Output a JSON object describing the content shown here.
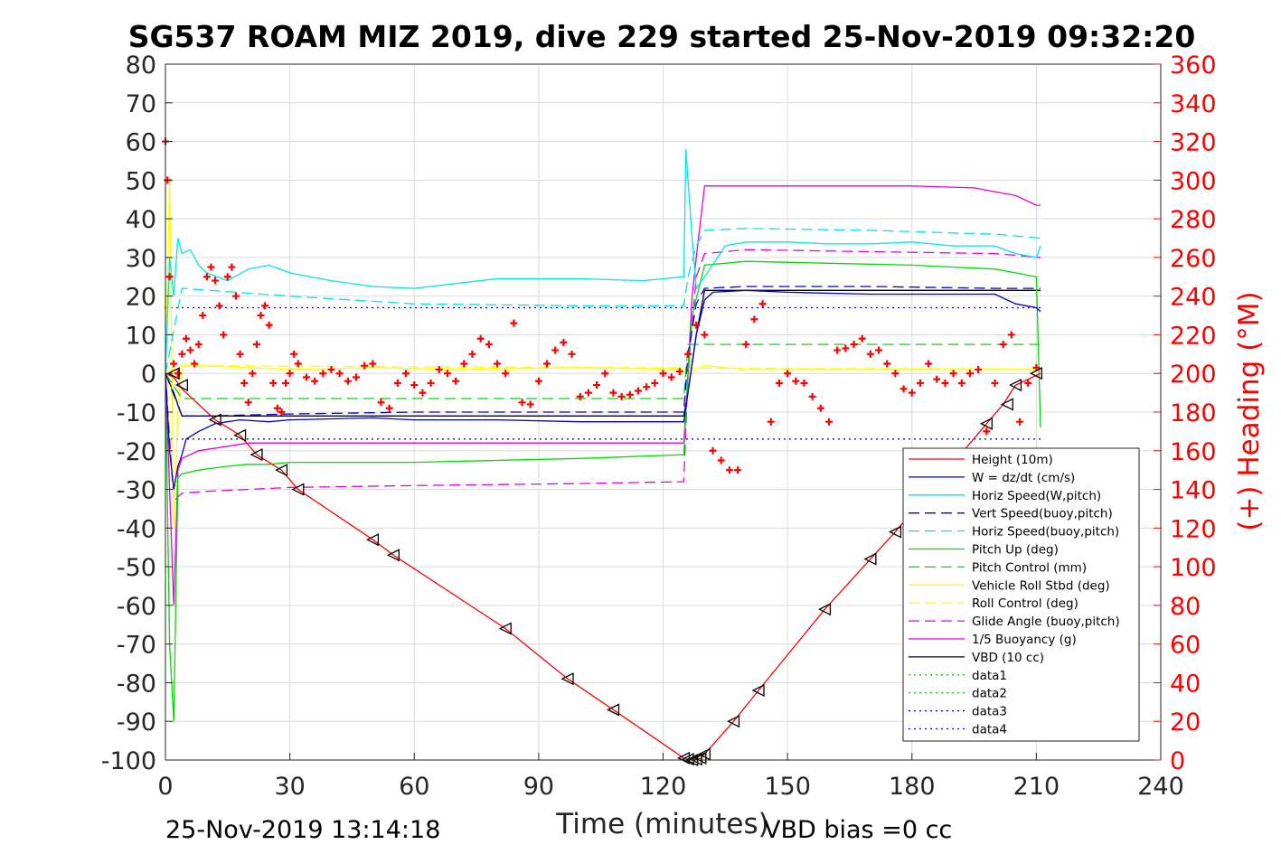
{
  "chart_data": {
    "type": "line",
    "title": "SG537 ROAM MIZ 2019, dive 229 started 25-Nov-2019 09:32:20",
    "xlabel": "Time (minutes)",
    "ylabel": "",
    "ylabel_right": "(+) Heading (°M)",
    "xlim": [
      0,
      240
    ],
    "ylim": [
      -100,
      80
    ],
    "ylim_right": [
      0,
      360
    ],
    "x_ticks": [
      "0",
      "30",
      "60",
      "90",
      "120",
      "150",
      "180",
      "210",
      "240"
    ],
    "y_ticks": [
      "80",
      "70",
      "60",
      "50",
      "40",
      "30",
      "20",
      "10",
      "0",
      "-10",
      "-20",
      "-30",
      "-40",
      "-50",
      "-60",
      "-70",
      "-80",
      "-90",
      "-100"
    ],
    "y_right_ticks": [
      "360",
      "340",
      "320",
      "300",
      "280",
      "260",
      "240",
      "220",
      "200",
      "180",
      "160",
      "140",
      "120",
      "100",
      "80",
      "60",
      "40",
      "20",
      "0"
    ],
    "grid": true,
    "legend_position": "bottom-right",
    "footer_left": "25-Nov-2019 13:14:18",
    "footer_right": "VBD bias =0 cc",
    "colors": {
      "height": "#ff0000",
      "w": "#0000cc",
      "horiz_speed": "#00e5e5",
      "vert_speed_buoy": "#0000cc",
      "horiz_speed_buoy": "#00e5e5",
      "pitch_up": "#00dd00",
      "pitch_control": "#00dd00",
      "roll": "#ffff00",
      "roll_control": "#ffff00",
      "glide_angle": "#e600e6",
      "buoyancy": "#e600e6",
      "vbd": "#000000",
      "data1": "#00dd00",
      "data2": "#00dd00",
      "data3": "#000080",
      "data4": "#0000cc",
      "heading": "#ff0000"
    },
    "series": [
      {
        "name": "Height (10m)",
        "style": "solid",
        "color_key": "height",
        "x": [
          0,
          2,
          4,
          12,
          18,
          22,
          28,
          32,
          50,
          55,
          82,
          97,
          108,
          125,
          126,
          127,
          128,
          129,
          130,
          137,
          143,
          159,
          170,
          176,
          198,
          202,
          205,
          211
        ],
        "y": [
          0,
          -1,
          -4,
          -12,
          -16,
          -21,
          -25,
          -30,
          -43,
          -47,
          -66,
          -79,
          -87,
          -99.5,
          -99.8,
          -100,
          -99.8,
          -99.6,
          -98.5,
          -90,
          -82,
          -61,
          -48,
          -41,
          -13,
          -8,
          -3,
          0
        ]
      },
      {
        "name": "W = dz/dt (cm/s)",
        "style": "solid",
        "color_key": "w",
        "x": [
          0,
          1,
          2,
          3,
          4,
          5,
          8,
          12,
          18,
          25,
          30,
          50,
          60,
          80,
          100,
          115,
          125,
          126,
          128,
          130,
          132,
          140,
          150,
          170,
          180,
          200,
          205,
          210,
          211
        ],
        "y": [
          0,
          -20,
          -30,
          -24,
          -21,
          -17,
          -15,
          -13,
          -12,
          -12.5,
          -12,
          -11.5,
          -12,
          -12,
          -12.5,
          -12.5,
          -12.5,
          -5,
          10,
          19,
          21,
          21.5,
          21,
          20.5,
          20.5,
          20.5,
          18,
          17,
          16
        ]
      },
      {
        "name": "Horiz Speed(W,pitch)",
        "style": "solid",
        "color_key": "horiz_speed",
        "x": [
          0,
          1,
          2,
          3,
          4,
          6,
          8,
          10,
          15,
          20,
          25,
          30,
          40,
          50,
          60,
          80,
          100,
          115,
          125,
          125.5,
          126,
          127,
          128,
          130,
          135,
          140,
          150,
          160,
          170,
          180,
          190,
          200,
          205,
          210,
          211
        ],
        "y": [
          0,
          30,
          20,
          35,
          31,
          32,
          28,
          26,
          24,
          27,
          28,
          26,
          24,
          22.5,
          22,
          24.5,
          24.5,
          24,
          25,
          58,
          50,
          35,
          22,
          25,
          33,
          34,
          34,
          33.5,
          33.5,
          34,
          33,
          33,
          31,
          30,
          33
        ]
      },
      {
        "name": "Vert Speed(buoy,pitch)",
        "style": "dashed",
        "color_key": "vert_speed_buoy",
        "x": [
          0,
          4,
          10,
          30,
          60,
          100,
          125,
          126,
          128,
          130,
          140,
          170,
          200,
          211
        ],
        "y": [
          0,
          -11,
          -11,
          -10.5,
          -10,
          -10,
          -10,
          5,
          18,
          22,
          22.5,
          22.5,
          22,
          22
        ]
      },
      {
        "name": "Horiz Speed(buoy,pitch)",
        "style": "dashed",
        "color_key": "horiz_speed_buoy",
        "x": [
          0,
          4,
          30,
          60,
          100,
          125,
          126,
          128,
          130,
          140,
          170,
          200,
          211
        ],
        "y": [
          0,
          22,
          20,
          18,
          17.5,
          17.5,
          25,
          33,
          37,
          37.5,
          37,
          36,
          35
        ]
      },
      {
        "name": "Pitch Up (deg)",
        "style": "solid",
        "color_key": "pitch_up",
        "x": [
          0,
          1,
          2,
          3,
          4,
          8,
          15,
          20,
          25,
          30,
          60,
          100,
          125,
          125.5,
          127,
          130,
          140,
          160,
          180,
          200,
          205,
          210,
          211
        ],
        "y": [
          0,
          -70,
          -90,
          -27,
          -26,
          -25,
          -24,
          -23.5,
          -23.5,
          -23,
          -23,
          -22,
          -21,
          -10,
          15,
          28,
          29,
          28.5,
          28,
          27,
          26,
          25,
          -14
        ]
      },
      {
        "name": "Pitch Control (mm)",
        "style": "dashed",
        "color_key": "pitch_control",
        "x": [
          0,
          4,
          125,
          126,
          211
        ],
        "y": [
          0,
          -6.5,
          -6.5,
          7.5,
          7.5
        ]
      },
      {
        "name": "Vehicle Roll Stbd (deg)",
        "style": "solid",
        "color_key": "roll",
        "x": [
          0,
          1,
          2,
          3,
          4,
          8,
          20,
          30,
          50,
          70,
          100,
          125,
          126,
          130,
          140,
          160,
          180,
          200,
          210,
          211
        ],
        "y": [
          0,
          50,
          -40,
          -10,
          2,
          2,
          1.5,
          1,
          1.5,
          1,
          1.5,
          1,
          0,
          2,
          1,
          1,
          1,
          1,
          1,
          1
        ]
      },
      {
        "name": "Roll Control (deg)",
        "style": "dashed",
        "color_key": "roll_control",
        "x": [
          0,
          4,
          211
        ],
        "y": [
          0,
          2,
          1
        ]
      },
      {
        "name": "Glide Angle (buoy,pitch)",
        "style": "dashed",
        "color_key": "glide_angle",
        "x": [
          0,
          2,
          4,
          10,
          30,
          60,
          100,
          125,
          126,
          128,
          130,
          140,
          170,
          200,
          211
        ],
        "y": [
          0,
          -33,
          -31,
          -30.5,
          -29.5,
          -29,
          -28.5,
          -28,
          0,
          25,
          31,
          32,
          31.5,
          31,
          30
        ]
      },
      {
        "name": "1/5 Buoyancy (g)",
        "style": "solid",
        "color_key": "buoyancy",
        "x": [
          0,
          2,
          3,
          4,
          8,
          20,
          40,
          80,
          125,
          126,
          127,
          128,
          130,
          140,
          160,
          180,
          195,
          205,
          210,
          211
        ],
        "y": [
          0,
          -60,
          -25,
          -22,
          -20,
          -18,
          -18,
          -18,
          -18,
          0,
          20,
          30,
          48.5,
          48.5,
          48.5,
          48.5,
          48,
          46,
          43.5,
          43.5
        ]
      },
      {
        "name": "VBD (10 cc)",
        "style": "solid",
        "color_key": "vbd",
        "x": [
          0,
          2,
          4,
          125,
          126,
          128,
          130,
          140,
          211
        ],
        "y": [
          0,
          -5,
          -11,
          -11,
          -5,
          10,
          21.5,
          21.5,
          21.5
        ]
      },
      {
        "name": "data1",
        "style": "dotted",
        "color_key": "data1",
        "x": [],
        "y": []
      },
      {
        "name": "data2",
        "style": "dotted",
        "color_key": "data2",
        "x": [],
        "y": []
      },
      {
        "name": "data3",
        "style": "dotted",
        "color_key": "data3",
        "x": [
          0,
          211
        ],
        "y": [
          -17,
          -17
        ]
      },
      {
        "name": "data4",
        "style": "dotted",
        "color_key": "data4",
        "x": [
          0,
          211
        ],
        "y": [
          17,
          17
        ]
      }
    ],
    "heading_markers_deg": {
      "x": [
        0,
        0.5,
        1,
        2,
        3,
        4,
        5,
        6,
        7,
        8,
        9,
        10,
        11,
        12,
        13,
        14,
        15,
        16,
        17,
        18,
        19,
        20,
        21,
        22,
        23,
        24,
        25,
        26,
        27,
        28,
        29,
        30,
        31,
        32,
        34,
        36,
        38,
        40,
        42,
        44,
        46,
        48,
        50,
        52,
        54,
        56,
        58,
        60,
        62,
        64,
        66,
        68,
        70,
        72,
        74,
        76,
        78,
        80,
        82,
        84,
        86,
        88,
        90,
        92,
        94,
        96,
        98,
        100,
        102,
        104,
        106,
        108,
        110,
        112,
        114,
        116,
        118,
        120,
        122,
        124,
        126,
        128,
        130,
        132,
        134,
        136,
        138,
        140,
        142,
        144,
        146,
        148,
        150,
        152,
        154,
        156,
        158,
        160,
        162,
        164,
        166,
        168,
        170,
        172,
        174,
        176,
        178,
        180,
        182,
        184,
        186,
        188,
        190,
        192,
        194,
        196,
        198,
        200,
        202,
        204,
        206,
        208,
        210
      ],
      "y": [
        320,
        300,
        250,
        205,
        200,
        210,
        218,
        212,
        205,
        215,
        230,
        250,
        255,
        248,
        235,
        220,
        250,
        255,
        240,
        210,
        195,
        185,
        200,
        215,
        230,
        235,
        225,
        195,
        182,
        180,
        195,
        200,
        210,
        205,
        198,
        196,
        200,
        202,
        200,
        196,
        198,
        204,
        205,
        185,
        182,
        195,
        200,
        194,
        190,
        195,
        202,
        200,
        196,
        205,
        210,
        218,
        215,
        205,
        200,
        226,
        185,
        184,
        196,
        205,
        212,
        216,
        210,
        188,
        190,
        194,
        200,
        190,
        188,
        189,
        191,
        193,
        195,
        200,
        198,
        201,
        210,
        225,
        220,
        160,
        155,
        150,
        150,
        215,
        228,
        236,
        175,
        195,
        200,
        196,
        195,
        188,
        182,
        175,
        212,
        213,
        215,
        218,
        210,
        212,
        205,
        200,
        192,
        190,
        195,
        205,
        197,
        195,
        200,
        195,
        200,
        202,
        170,
        195,
        215,
        220,
        175,
        195,
        203
      ]
    },
    "dive_markers": {
      "x": [
        2,
        4,
        12,
        18,
        22,
        28,
        32,
        50,
        55,
        82,
        97,
        108,
        125,
        126,
        127,
        128,
        129,
        130,
        137,
        143,
        159,
        170,
        176,
        198,
        203,
        205,
        210
      ],
      "y": [
        0,
        -3,
        -12,
        -16,
        -21,
        -25,
        -30,
        -43,
        -47,
        -66,
        -79,
        -87,
        -99.5,
        -99.8,
        -100,
        -99.8,
        -99.5,
        -98.5,
        -90,
        -82,
        -61,
        -48,
        -41,
        -13,
        -8,
        -3,
        0
      ]
    }
  }
}
